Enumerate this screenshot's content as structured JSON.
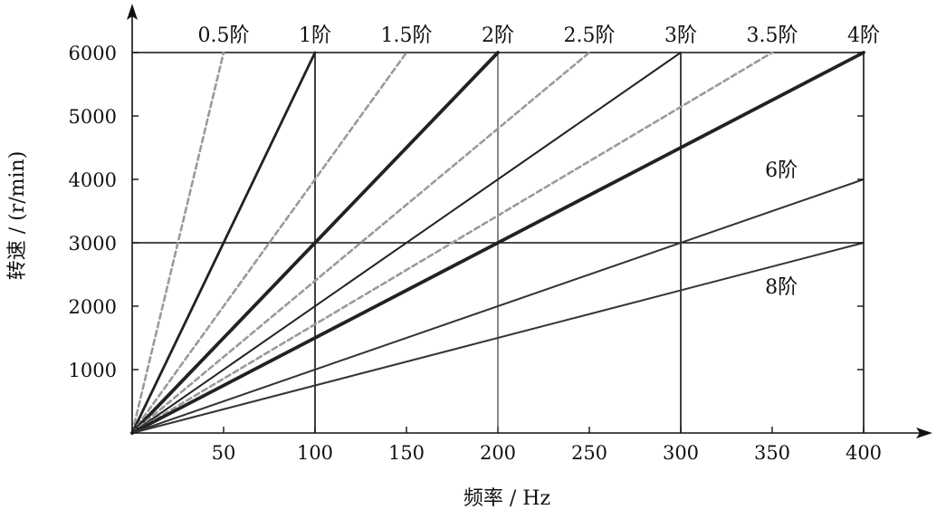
{
  "chart_data": {
    "type": "line",
    "title": "",
    "xlabel": "频率 / Hz",
    "ylabel": "转速 / (r/min)",
    "xlim": [
      0,
      400
    ],
    "ylim": [
      0,
      6000
    ],
    "x_ticks": [
      50,
      100,
      150,
      200,
      250,
      300,
      350,
      400
    ],
    "y_ticks": [
      1000,
      2000,
      3000,
      4000,
      5000,
      6000
    ],
    "reference_lines": {
      "vertical_x": [
        100,
        200,
        300,
        400
      ],
      "horizontal_y": [
        3000,
        6000
      ]
    },
    "series": [
      {
        "name": "0.5阶",
        "order": 0.5,
        "style": "dashed",
        "color": "#9a9a9a",
        "points": [
          [
            0,
            0
          ],
          [
            50,
            6000
          ]
        ]
      },
      {
        "name": "1阶",
        "order": 1,
        "style": "solid",
        "color": "#222222",
        "points": [
          [
            0,
            0
          ],
          [
            100,
            6000
          ]
        ]
      },
      {
        "name": "1.5阶",
        "order": 1.5,
        "style": "dashed",
        "color": "#9a9a9a",
        "points": [
          [
            0,
            0
          ],
          [
            150,
            6000
          ]
        ]
      },
      {
        "name": "2阶",
        "order": 2,
        "style": "solid",
        "color": "#222222",
        "points": [
          [
            0,
            0
          ],
          [
            200,
            6000
          ]
        ]
      },
      {
        "name": "2.5阶",
        "order": 2.5,
        "style": "dashed",
        "color": "#9a9a9a",
        "points": [
          [
            0,
            0
          ],
          [
            250,
            6000
          ]
        ]
      },
      {
        "name": "3阶",
        "order": 3,
        "style": "solid",
        "color": "#222222",
        "points": [
          [
            0,
            0
          ],
          [
            300,
            6000
          ]
        ]
      },
      {
        "name": "3.5阶",
        "order": 3.5,
        "style": "dashed",
        "color": "#9a9a9a",
        "points": [
          [
            0,
            0
          ],
          [
            350,
            6000
          ]
        ]
      },
      {
        "name": "4阶",
        "order": 4,
        "style": "solid",
        "color": "#222222",
        "points": [
          [
            0,
            0
          ],
          [
            400,
            6000
          ]
        ]
      },
      {
        "name": "6阶",
        "order": 6,
        "style": "solid",
        "color": "#333333",
        "points": [
          [
            0,
            0
          ],
          [
            400,
            4000
          ]
        ]
      },
      {
        "name": "8阶",
        "order": 8,
        "style": "solid",
        "color": "#333333",
        "points": [
          [
            0,
            0
          ],
          [
            400,
            3000
          ]
        ]
      }
    ]
  }
}
